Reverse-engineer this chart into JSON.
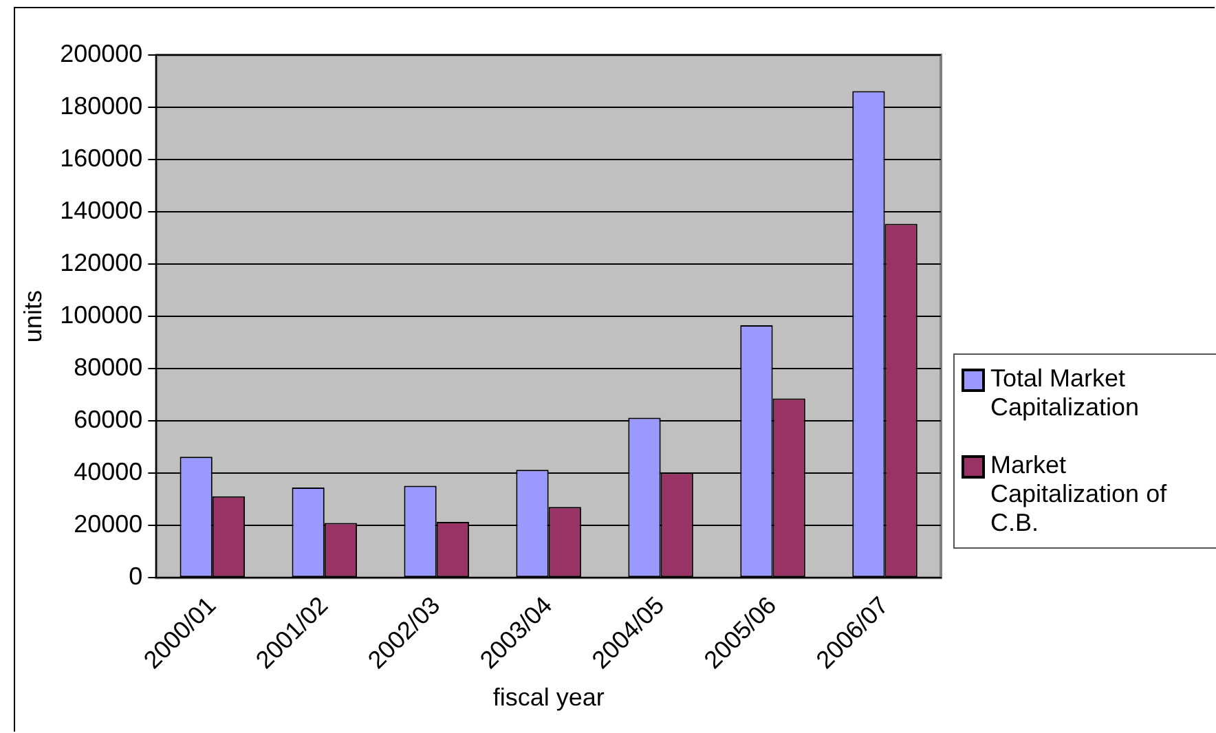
{
  "chart_data": {
    "type": "bar",
    "xlabel": "fiscal year",
    "ylabel": "units",
    "categories": [
      "2000/01",
      "2001/02",
      "2002/03",
      "2003/04",
      "2004/05",
      "2005/06",
      "2006/07"
    ],
    "series": [
      {
        "name": "Total Market Capitalization",
        "color": "#9999ff",
        "values": [
          46300,
          34500,
          35200,
          41300,
          61200,
          96600,
          186200
        ]
      },
      {
        "name": "Market Capitalization of C.B.",
        "color": "#993366",
        "values": [
          31200,
          21000,
          21400,
          27100,
          40200,
          68600,
          135400
        ]
      }
    ],
    "ylim": [
      0,
      200000
    ],
    "yticks": [
      0,
      20000,
      40000,
      60000,
      80000,
      100000,
      120000,
      140000,
      160000,
      180000,
      200000
    ],
    "grid": "y",
    "legend": "right"
  }
}
